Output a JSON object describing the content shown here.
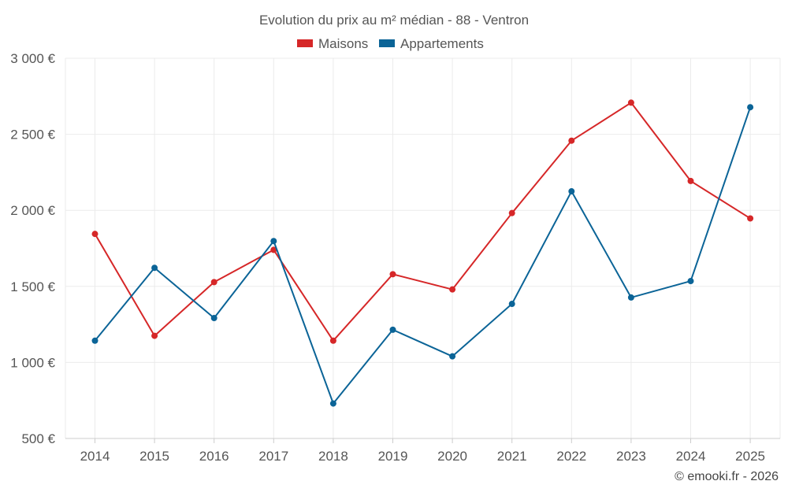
{
  "chart_data": {
    "type": "line",
    "title": "Evolution du prix au m² médian - 88 - Ventron",
    "categories": [
      "2014",
      "2015",
      "2016",
      "2017",
      "2018",
      "2019",
      "2020",
      "2021",
      "2022",
      "2023",
      "2024",
      "2025"
    ],
    "series": [
      {
        "name": "Maisons",
        "color": "#d62728",
        "values": [
          1845,
          1175,
          1528,
          1740,
          1143,
          1580,
          1480,
          1982,
          2458,
          2708,
          2193,
          1947
        ]
      },
      {
        "name": "Appartements",
        "color": "#0b6497",
        "values": [
          1143,
          1622,
          1292,
          1798,
          730,
          1215,
          1040,
          1385,
          2125,
          1427,
          1535,
          2678
        ]
      }
    ],
    "ylim": [
      500,
      3000
    ],
    "yticks": [
      500,
      1000,
      1500,
      2000,
      2500,
      3000
    ],
    "ytick_labels": [
      "500 €",
      "1 000 €",
      "1 500 €",
      "2 000 €",
      "2 500 €",
      "3 000 €"
    ],
    "xlabel": "",
    "ylabel": "",
    "grid": true,
    "legend_position": "top-center"
  },
  "credit": "© emooki.fr - 2026"
}
